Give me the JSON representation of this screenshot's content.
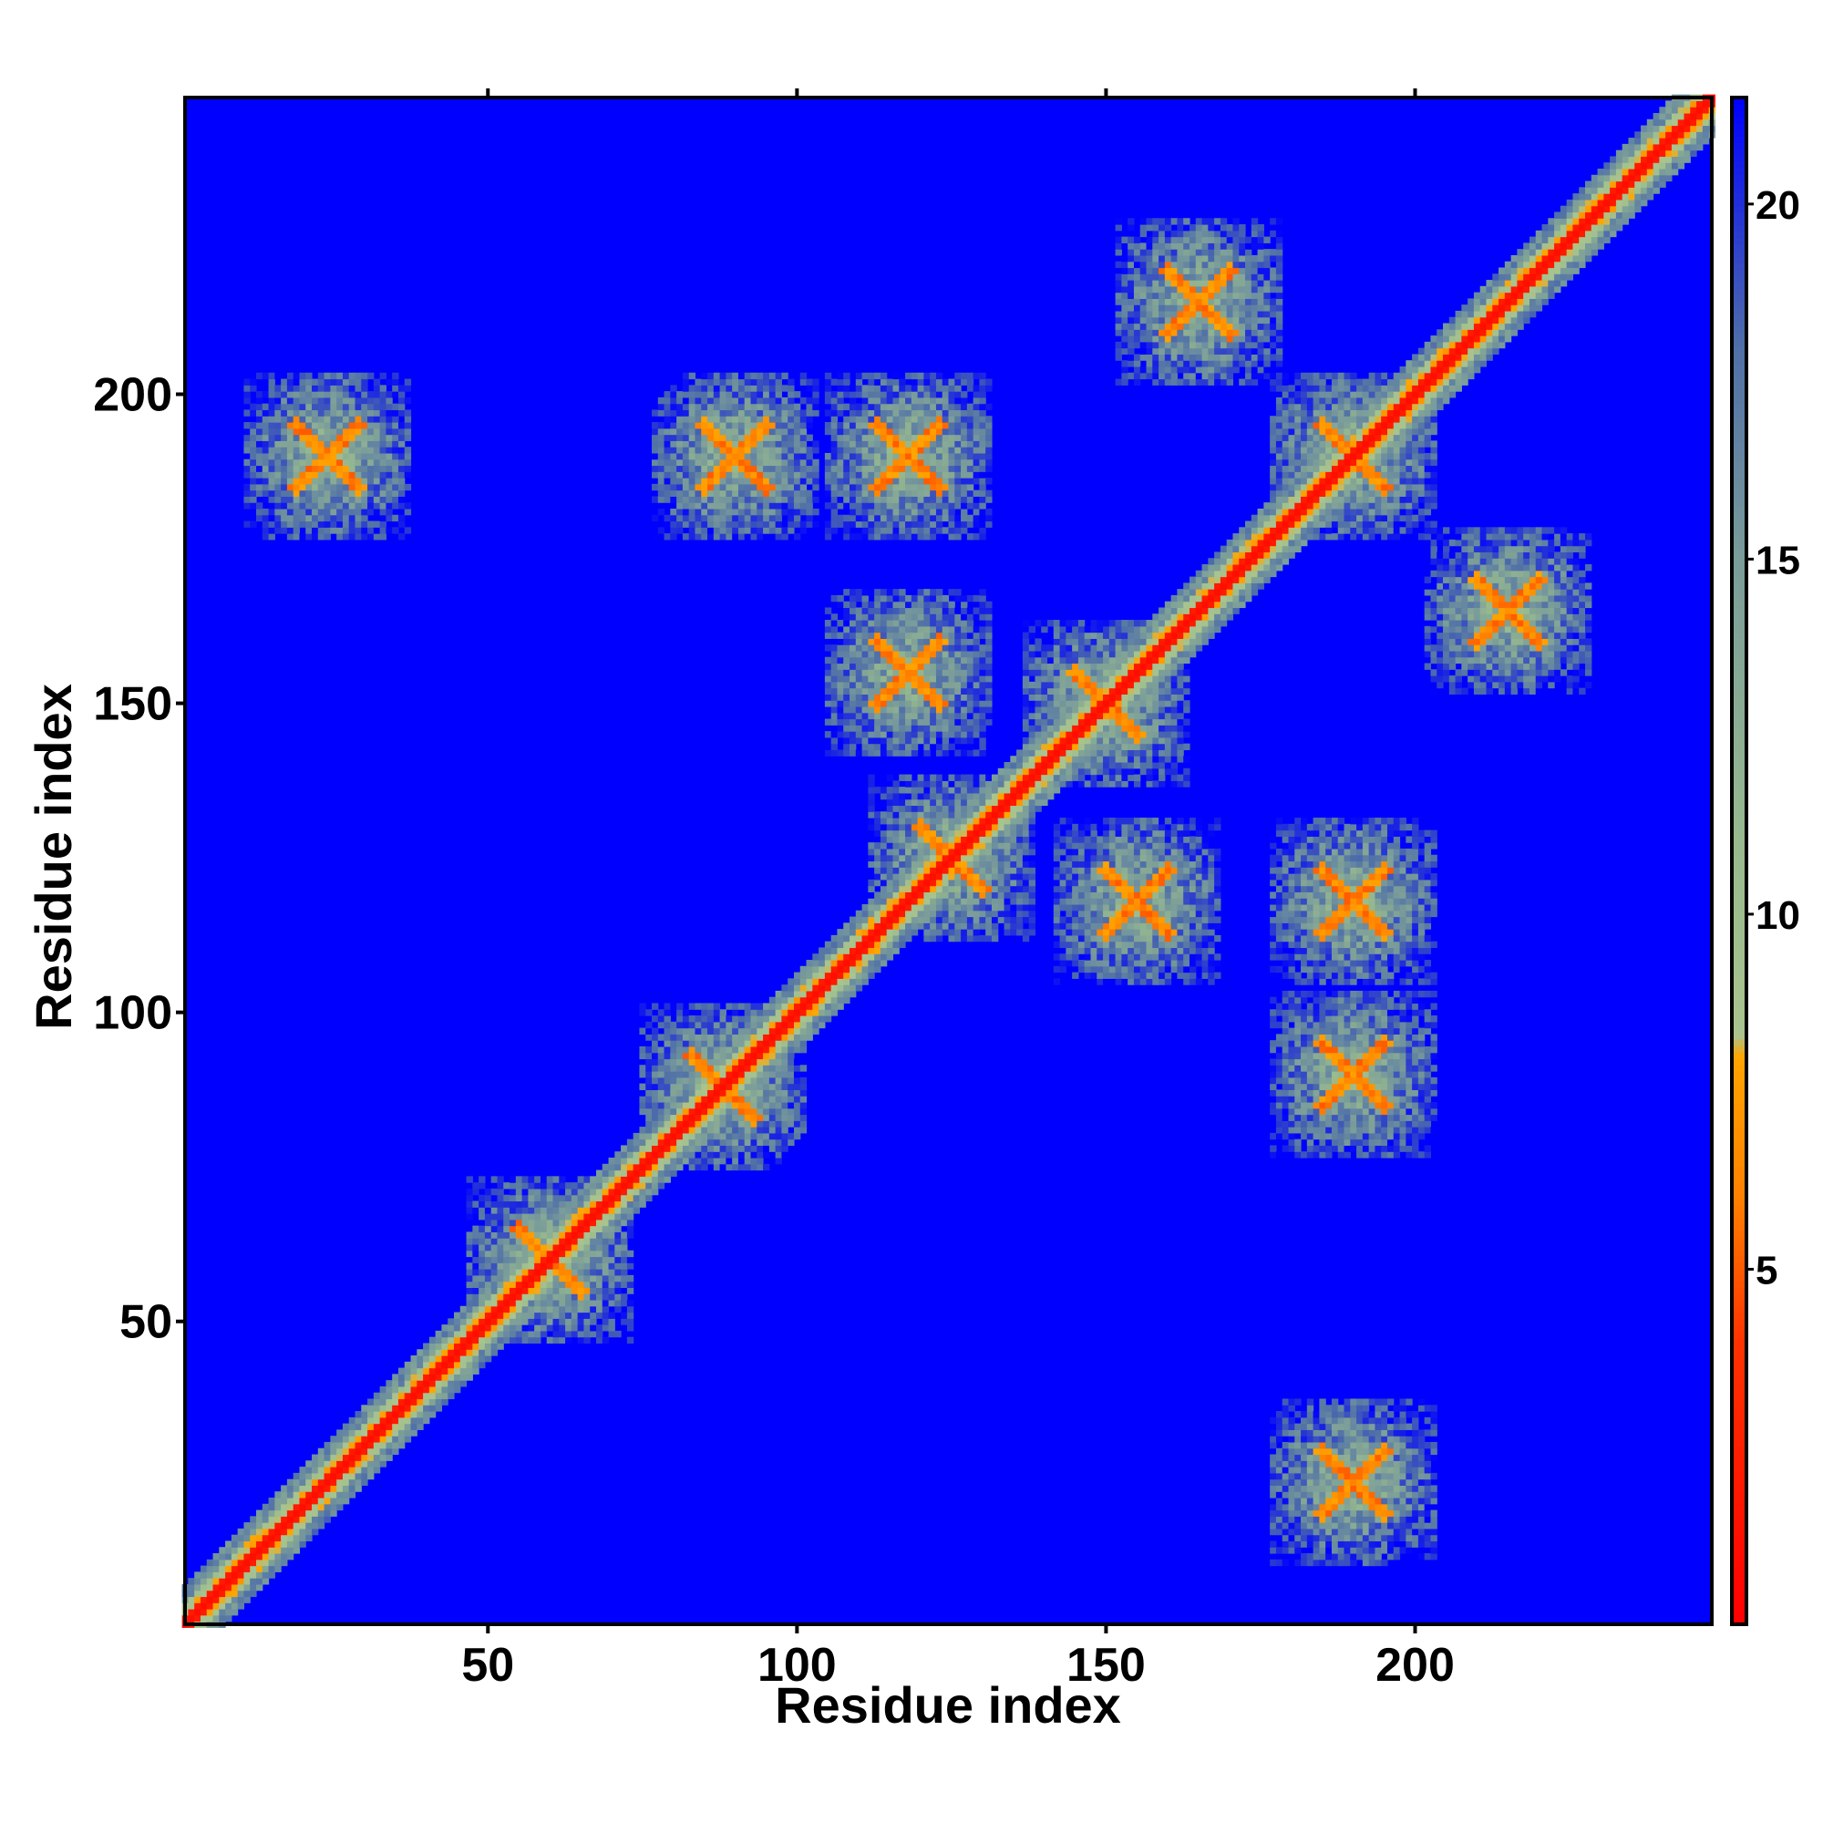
{
  "chart_data": {
    "type": "heatmap",
    "title": "",
    "xlabel": "Residue index",
    "ylabel": "Residue index",
    "xlim": [
      1,
      248
    ],
    "ylim": [
      1,
      248
    ],
    "x_ticks": [
      50,
      100,
      150,
      200
    ],
    "y_ticks": [
      50,
      100,
      150,
      200
    ],
    "x_tick_labels": [
      "50",
      "100",
      "150",
      "200"
    ],
    "y_tick_labels": [
      "50",
      "100",
      "150",
      "200"
    ],
    "colorbar": {
      "range": [
        0,
        21.5
      ],
      "ticks": [
        5,
        10,
        15,
        20
      ],
      "tick_labels": [
        "5",
        "10",
        "15",
        "20"
      ],
      "colors": [
        {
          "value": 0,
          "color": "#ff0000"
        },
        {
          "value": 4,
          "color": "#ff3300"
        },
        {
          "value": 6,
          "color": "#ff8000"
        },
        {
          "value": 8,
          "color": "#ffa500"
        },
        {
          "value": 8.3,
          "color": "#a9c48e"
        },
        {
          "value": 11,
          "color": "#98ba8e"
        },
        {
          "value": 15,
          "color": "#7a9c9a"
        },
        {
          "value": 18,
          "color": "#4f6fa8"
        },
        {
          "value": 21.5,
          "color": "#0000ff"
        }
      ],
      "background_color": "#0000ff"
    },
    "diagonal_color": "#ff0000",
    "contact_features": [
      {
        "kind": "diagonal",
        "from": 1,
        "to": 248
      },
      {
        "kind": "cross",
        "x": 60,
        "y": 60
      },
      {
        "kind": "cross",
        "x": 88,
        "y": 88
      },
      {
        "kind": "cross",
        "x": 125,
        "y": 125
      },
      {
        "kind": "cross",
        "x": 150,
        "y": 150
      },
      {
        "kind": "cross",
        "x": 190,
        "y": 190
      },
      {
        "kind": "cross",
        "x": 24,
        "y": 190
      },
      {
        "kind": "cross",
        "x": 90,
        "y": 190
      },
      {
        "kind": "cross",
        "x": 118,
        "y": 190
      },
      {
        "kind": "cross",
        "x": 118,
        "y": 155
      },
      {
        "kind": "cross",
        "x": 155,
        "y": 118
      },
      {
        "kind": "cross",
        "x": 190,
        "y": 118
      },
      {
        "kind": "cross",
        "x": 190,
        "y": 90
      },
      {
        "kind": "cross",
        "x": 190,
        "y": 24
      },
      {
        "kind": "cross",
        "x": 165,
        "y": 215
      },
      {
        "kind": "cross",
        "x": 215,
        "y": 165
      }
    ]
  }
}
